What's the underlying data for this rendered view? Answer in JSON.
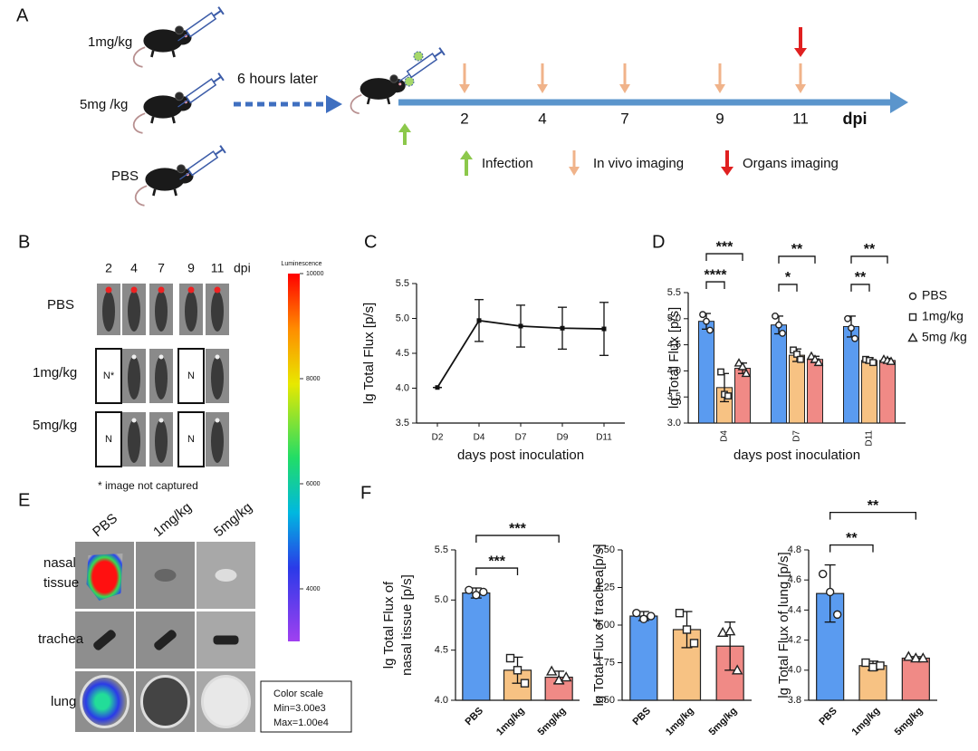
{
  "panels": {
    "A": {
      "label": "A",
      "doses": [
        "1mg/kg",
        "5mg /kg",
        "PBS"
      ],
      "delay": "6 hours later",
      "timeline_days": [
        "2",
        "4",
        "7",
        "9",
        "11"
      ],
      "timeline_unit": "dpi",
      "legend": [
        "Infection",
        "In vivo imaging",
        "Organs imaging"
      ]
    },
    "B": {
      "label": "B",
      "days": [
        "2",
        "4",
        "7",
        "9",
        "11"
      ],
      "unit": "dpi",
      "rows": [
        "PBS",
        "1mg/kg",
        "5mg/kg"
      ],
      "missing": [
        "N*",
        "N",
        "N",
        "N"
      ],
      "note": "* image not captured",
      "colorbar": {
        "title": "Luminescence",
        "clim": [
          3000,
          10000
        ],
        "ticks": [
          10000,
          8000,
          6000,
          4000
        ]
      }
    },
    "E": {
      "label": "E",
      "columns": [
        "PBS",
        "1mg/kg",
        "5mg/kg"
      ],
      "rows": [
        [
          "nasal",
          "tissue"
        ],
        [
          "trachea"
        ],
        [
          "lung"
        ]
      ],
      "scale_box": [
        "Color scale",
        "Min=3.00e3",
        "Max=1.00e4"
      ]
    },
    "F": {
      "label": "F"
    }
  },
  "chart_data": [
    {
      "type": "line",
      "panel": "C",
      "ylabel": "lg Total Flux [p/s]",
      "xlabel": "days post inoculation",
      "categories": [
        "D2",
        "D4",
        "D7",
        "D9",
        "D11"
      ],
      "values": [
        4.01,
        4.97,
        4.89,
        4.86,
        4.85
      ],
      "errors": [
        0,
        0.3,
        0.3,
        0.3,
        0.38
      ],
      "color": "#111111",
      "ylim": [
        3.5,
        5.5
      ],
      "yticks": [
        3.5,
        {
          "value": 4,
          "label": "4.0"
        },
        4.5,
        {
          "value": 5,
          "label": "5.0"
        },
        5.5
      ]
    },
    {
      "type": "bar",
      "panel": "D",
      "ylabel": "lg Total Flux [p/s]",
      "xlabel": "days post inoculation",
      "categories": [
        "D4",
        "D7",
        "D11"
      ],
      "series": [
        {
          "name": "PBS",
          "color": "#5a9bf0",
          "values": [
            4.95,
            4.88,
            4.85
          ],
          "errors": [
            0.15,
            0.17,
            0.2
          ],
          "points": [
            [
              5.08,
              4.95,
              4.78
            ],
            [
              5.05,
              4.88,
              4.72
            ],
            [
              5.0,
              4.82,
              4.62
            ]
          ]
        },
        {
          "name": "1mg/kg",
          "color": "#f7c283",
          "values": [
            3.68,
            4.3,
            4.2
          ],
          "errors": [
            0.27,
            0.12,
            0.05
          ],
          "points": [
            [
              3.98,
              3.55,
              3.52
            ],
            [
              4.4,
              4.32,
              4.22
            ],
            [
              4.22,
              4.2,
              4.16
            ]
          ]
        },
        {
          "name": "5mg /kg",
          "color": "#f08a86",
          "values": [
            4.05,
            4.22,
            4.2
          ],
          "errors": [
            0.1,
            0.06,
            0.04
          ],
          "points": [
            [
              4.15,
              4.08,
              3.95
            ],
            [
              4.28,
              4.22,
              4.16
            ],
            [
              4.22,
              4.2,
              4.18
            ]
          ]
        }
      ],
      "significance": [
        [
          "****",
          "***"
        ],
        [
          "*",
          "**"
        ],
        [
          "**",
          "**"
        ]
      ],
      "ylim": [
        3,
        5.5
      ],
      "yticks": [
        {
          "value": 3,
          "label": "3.0"
        },
        3.5,
        {
          "value": 4,
          "label": "4.0"
        },
        4.5,
        {
          "value": 5,
          "label": "5.0"
        },
        5.5
      ],
      "legend": "right"
    },
    {
      "type": "bar",
      "ylabel": [
        "lg Total Flux of",
        "nasal tissue [p/s]"
      ],
      "categories": [
        "PBS",
        "1mg/kg",
        "5mg/kg"
      ],
      "values": [
        5.07,
        4.3,
        4.23
      ],
      "errors": [
        0.05,
        0.13,
        0.06
      ],
      "points": [
        [
          5.1,
          5.05,
          5.08
        ],
        [
          4.42,
          4.3,
          4.17
        ],
        [
          4.29,
          4.2,
          4.23
        ]
      ],
      "colors": [
        "#5a9bf0",
        "#f7c283",
        "#f08a86"
      ],
      "significance": [
        "***",
        "***"
      ],
      "ylim": [
        4,
        5.5
      ],
      "yticks": [
        {
          "value": 4,
          "label": "4.0"
        },
        4.5,
        {
          "value": 5,
          "label": "5.0"
        },
        5.5
      ]
    },
    {
      "type": "bar",
      "ylabel": [
        "lg Total Flux of trachea[p/s]"
      ],
      "categories": [
        "PBS",
        "1mg/kg",
        "5mg/kg"
      ],
      "values": [
        4.06,
        3.97,
        3.86
      ],
      "errors": [
        0.03,
        0.12,
        0.16
      ],
      "points": [
        [
          4.08,
          4.04,
          4.06
        ],
        [
          4.08,
          3.97,
          3.88
        ],
        [
          3.95,
          3.96,
          3.7
        ]
      ],
      "colors": [
        "#5a9bf0",
        "#f7c283",
        "#f08a86"
      ],
      "ylim": [
        3.5,
        4.5
      ],
      "yticks": [
        {
          "value": 3.5,
          "label": "3.50"
        },
        3.75,
        {
          "value": 4,
          "label": "4.00"
        },
        4.25,
        {
          "value": 4.5,
          "label": "4.50"
        }
      ]
    },
    {
      "type": "bar",
      "ylabel": [
        "lg Total Flux of lung [p/s]"
      ],
      "categories": [
        "PBS",
        "1mg/kg",
        "5mg/kg"
      ],
      "values": [
        4.51,
        4.03,
        4.08
      ],
      "errors": [
        0.19,
        0.03,
        0.01
      ],
      "points": [
        [
          4.64,
          4.52,
          4.37
        ],
        [
          4.05,
          4.02,
          4.03
        ],
        [
          4.09,
          4.08,
          4.08
        ]
      ],
      "colors": [
        "#5a9bf0",
        "#f7c283",
        "#f08a86"
      ],
      "significance": [
        "**",
        "**"
      ],
      "ylim": [
        3.8,
        4.8
      ],
      "yticks": [
        3.8,
        {
          "value": 4,
          "label": "4.0"
        },
        4.2,
        4.4,
        4.6,
        4.8
      ]
    }
  ]
}
